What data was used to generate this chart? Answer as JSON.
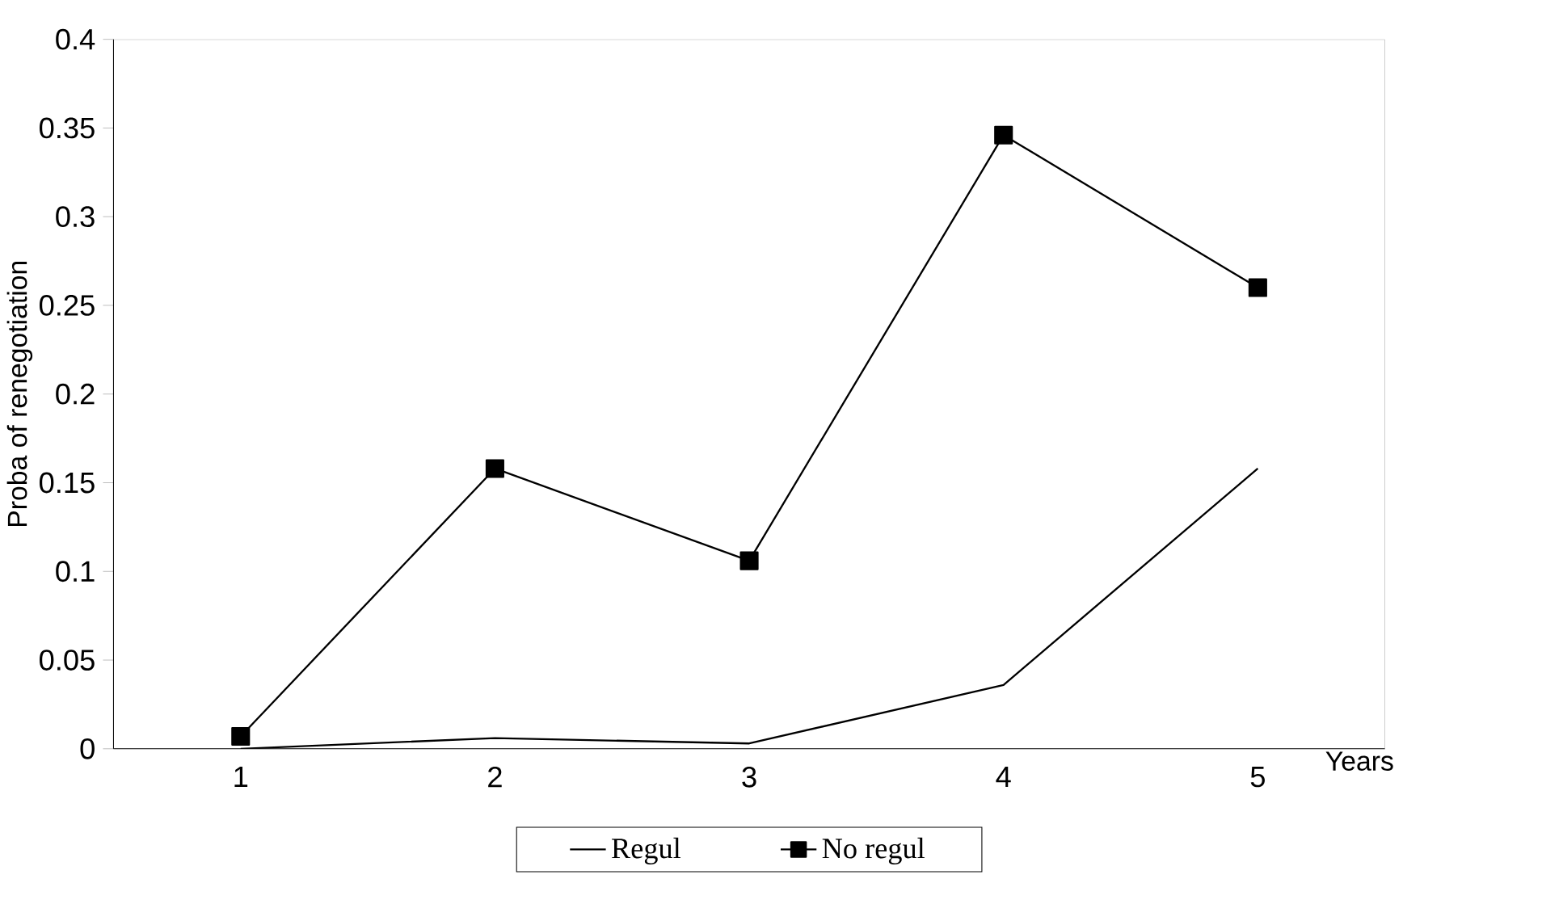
{
  "chart_data": {
    "type": "line",
    "ylabel": "Proba of renegotiation",
    "xlabel": "Years",
    "categories": [
      "1",
      "2",
      "3",
      "4",
      "5"
    ],
    "series": [
      {
        "name": "Regul",
        "color": "#000000",
        "marker": "none",
        "values": [
          0,
          0.006,
          0.003,
          0.036,
          0.158
        ]
      },
      {
        "name": "No regul",
        "color": "#000000",
        "marker": "square",
        "values": [
          0.007,
          0.158,
          0.106,
          0.346,
          0.26
        ]
      }
    ],
    "ylim": [
      0,
      0.4
    ],
    "yticks": [
      0,
      0.05,
      0.1,
      0.15,
      0.2,
      0.25,
      0.3,
      0.35,
      0.4
    ],
    "legend": "bottom"
  }
}
